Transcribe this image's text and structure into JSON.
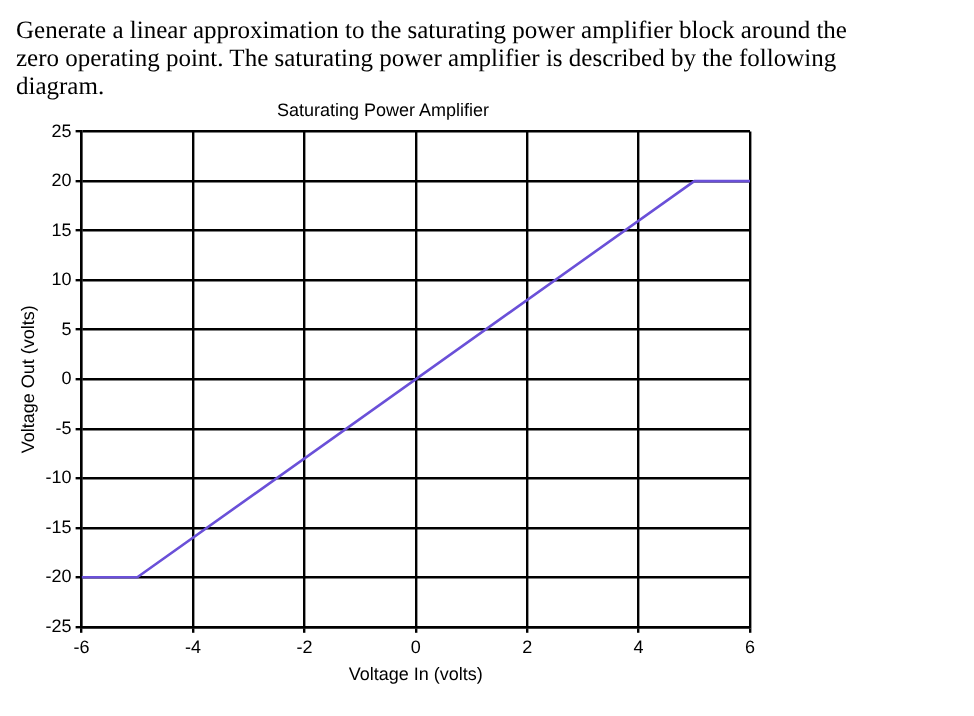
{
  "chart_data": {
    "type": "line",
    "title": "Saturating Power Amplifier",
    "xlabel": "Voltage In (volts)",
    "ylabel": "Voltage Out (volts)",
    "annotations": [
      "Generate a linear approximation to the saturating power amplifier block around the zero operating point. The saturating power amplifier is described by the following diagram."
    ],
    "x": [
      -6,
      -5,
      5,
      6
    ],
    "series": [
      {
        "color": "#6a50d8",
        "values": [
          -20,
          -20,
          20,
          20
        ]
      }
    ],
    "xlim": [
      -6,
      6
    ],
    "xticks": [
      -6,
      -4,
      -2,
      0,
      2,
      4,
      6
    ],
    "ylim": [
      -25,
      25
    ],
    "yticks": [
      -25,
      -20,
      -15,
      -10,
      -5,
      0,
      5,
      10,
      15,
      20,
      25
    ],
    "grid": true,
    "legend": false,
    "marker": "none",
    "line_style": "solid"
  }
}
